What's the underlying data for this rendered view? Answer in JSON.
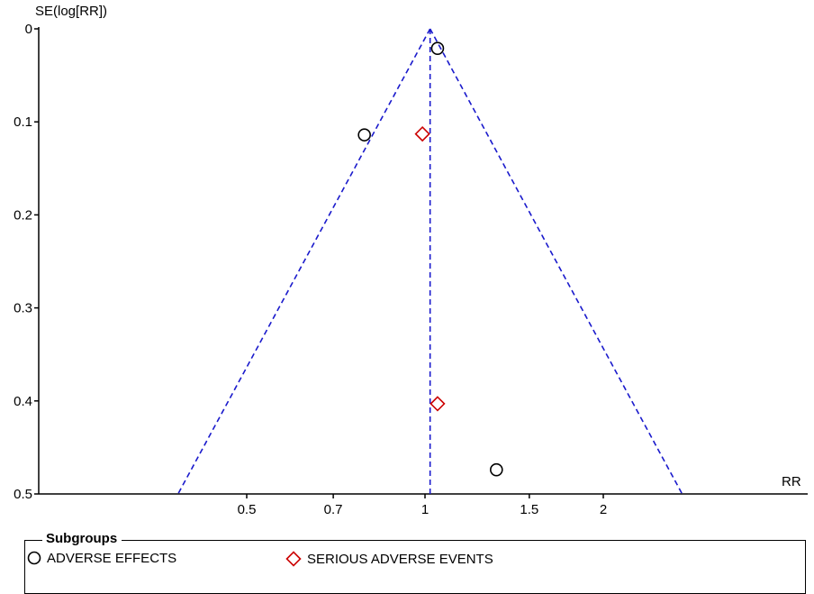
{
  "chart_data": {
    "type": "scatter",
    "title": "",
    "ylabel": "SE(log[RR])",
    "xlabel": "RR",
    "x_scale": "log",
    "x_ticks": [
      0.5,
      0.7,
      1,
      1.5,
      2
    ],
    "x_tick_labels": [
      "0.5",
      "0.7",
      "1",
      "1.5",
      "2"
    ],
    "y_ticks": [
      0,
      0.1,
      0.2,
      0.3,
      0.4,
      0.5
    ],
    "y_tick_labels": [
      "0",
      "0.1",
      "0.2",
      "0.3",
      "0.4",
      "0.5"
    ],
    "ylim": [
      0,
      0.5
    ],
    "y_inverted": true,
    "pooled_estimate": 1.02,
    "funnel_lines": "95% pseudo-confidence limits (dashed)",
    "legend_title": "Subgroups",
    "series": [
      {
        "name": "ADVERSE EFFECTS",
        "marker": "circle",
        "color": "#000000",
        "points": [
          {
            "x": 1.05,
            "y": 0.021
          },
          {
            "x": 0.79,
            "y": 0.114
          },
          {
            "x": 1.32,
            "y": 0.474
          }
        ]
      },
      {
        "name": "SERIOUS ADVERSE EVENTS",
        "marker": "diamond",
        "color": "#cc0000",
        "points": [
          {
            "x": 0.99,
            "y": 0.113
          },
          {
            "x": 1.05,
            "y": 0.403
          }
        ]
      }
    ]
  },
  "colors": {
    "funnel": "#1a1acc",
    "axis": "#000000"
  }
}
